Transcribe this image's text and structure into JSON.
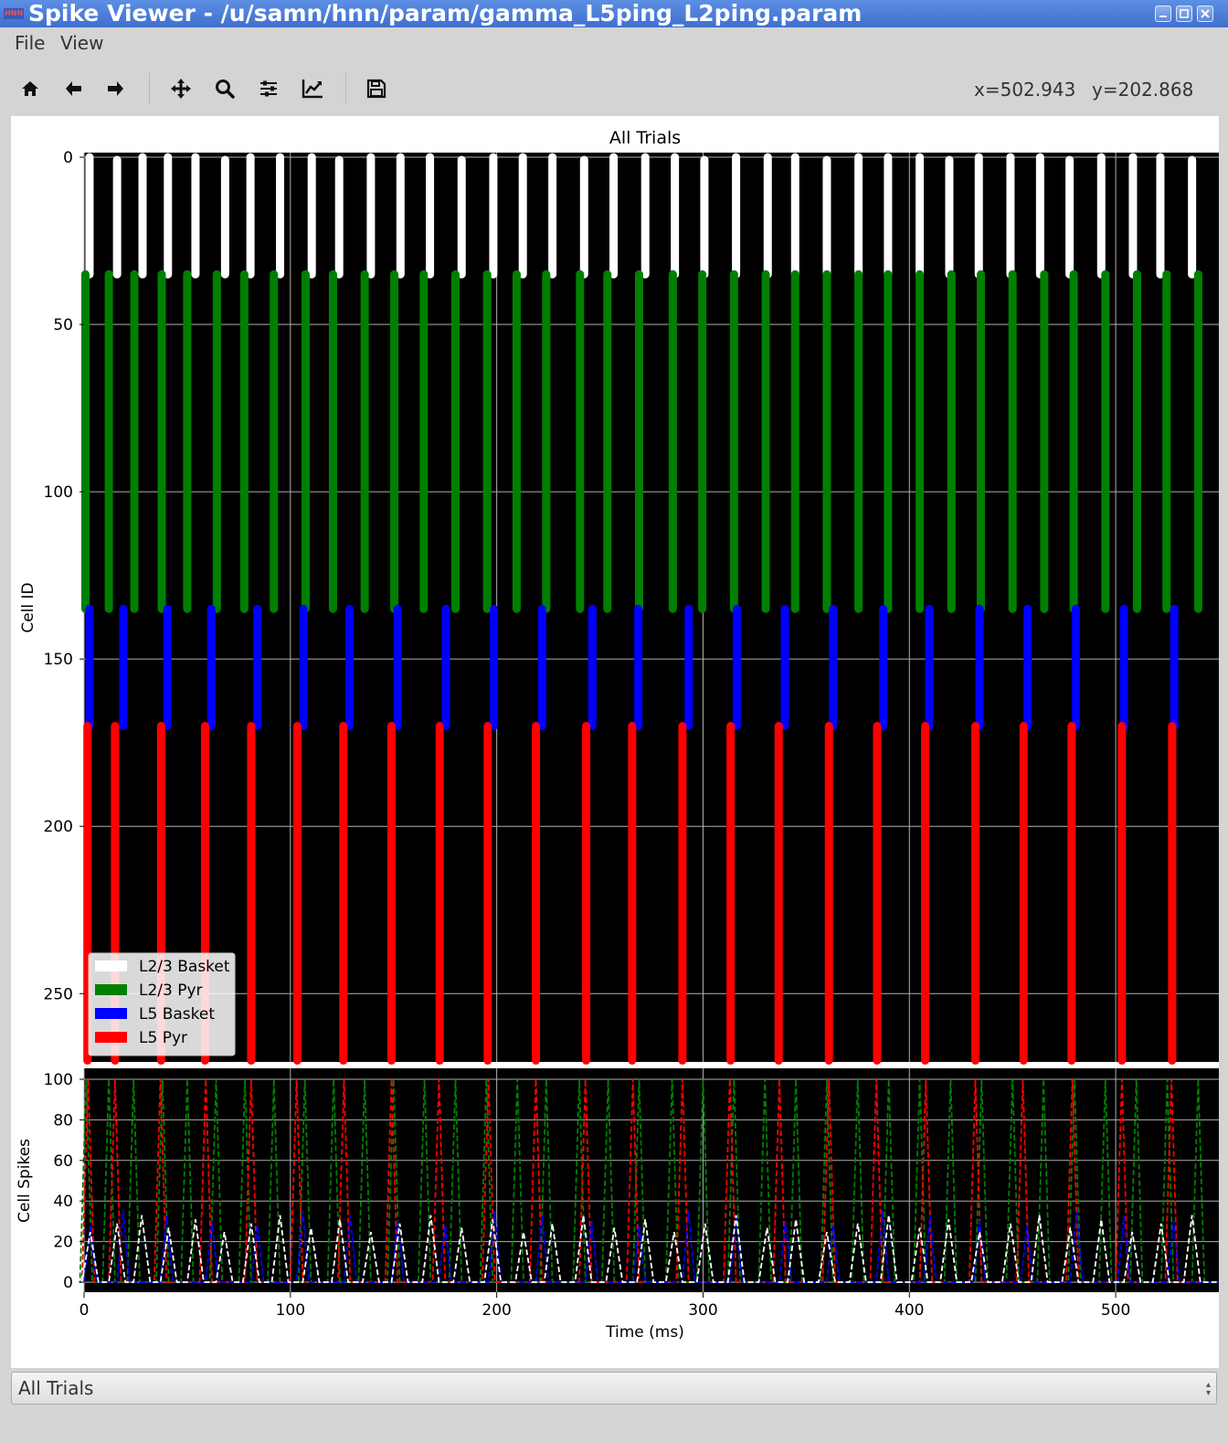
{
  "window": {
    "app_icon_text": "HNN",
    "title": "Spike Viewer - /u/samn/hnn/param/gamma_L5ping_L2ping.param"
  },
  "menu": {
    "items": [
      "File",
      "View"
    ]
  },
  "toolbar": {
    "tools": [
      "home-icon",
      "back-arrow-icon",
      "forward-arrow-icon",
      "pan-icon",
      "zoom-icon",
      "subplots-config-icon",
      "axes-edit-icon",
      "save-icon"
    ],
    "x_readout": "x=502.943",
    "y_readout": "y=202.868"
  },
  "trial_selector": {
    "value": "All Trials"
  },
  "colors": {
    "l23_basket": "#ffffff",
    "l23_pyr": "#008000",
    "l5_basket": "#0000ff",
    "l5_pyr": "#ff0000",
    "plot_bg": "#000000",
    "grid": "#b0b0b0"
  },
  "chart_data": [
    {
      "type": "scatter",
      "title": "All Trials",
      "ylabel": "Cell ID",
      "ylim": [
        270,
        0
      ],
      "xlim": [
        0,
        550
      ],
      "yticks": [
        0,
        50,
        100,
        150,
        200,
        250
      ],
      "grid": true,
      "legend_position": "lower-left",
      "series": [
        {
          "name": "L2/3 Basket",
          "color": "#ffffff",
          "cell_range": [
            0,
            35
          ],
          "spike_times": [
            3,
            16,
            28,
            41,
            54,
            68,
            81,
            95,
            110,
            124,
            139,
            153,
            168,
            183,
            198,
            213,
            227,
            242,
            257,
            272,
            286,
            301,
            316,
            331,
            345,
            360,
            375,
            390,
            405,
            419,
            434,
            449,
            463,
            478,
            493,
            508,
            522,
            537
          ]
        },
        {
          "name": "L2/3 Pyr",
          "color": "#008000",
          "cell_range": [
            35,
            135
          ],
          "spike_times": [
            1,
            12,
            24,
            38,
            50,
            64,
            78,
            92,
            107,
            121,
            136,
            150,
            165,
            180,
            195,
            210,
            224,
            240,
            254,
            269,
            285,
            300,
            315,
            330,
            345,
            360,
            375,
            390,
            405,
            420,
            435,
            450,
            465,
            480,
            495,
            510,
            525,
            540
          ]
        },
        {
          "name": "L5 Basket",
          "color": "#0000ff",
          "cell_range": [
            135,
            170
          ],
          "spike_times": [
            3,
            19,
            40,
            62,
            84,
            106,
            129,
            152,
            175,
            199,
            222,
            246,
            269,
            293,
            316,
            340,
            363,
            387,
            410,
            434,
            457,
            481,
            504,
            528
          ]
        },
        {
          "name": "L5 Pyr",
          "color": "#ff0000",
          "cell_range": [
            170,
            270
          ],
          "spike_times": [
            2,
            15,
            37,
            59,
            81,
            103,
            126,
            149,
            172,
            196,
            219,
            243,
            266,
            290,
            313,
            337,
            361,
            384,
            408,
            432,
            455,
            479,
            503,
            527
          ]
        }
      ]
    },
    {
      "type": "line",
      "xlabel": "Time (ms)",
      "ylabel": "Cell Spikes",
      "xlim": [
        0,
        550
      ],
      "ylim": [
        -5,
        105
      ],
      "xticks": [
        0,
        100,
        200,
        300,
        400,
        500
      ],
      "yticks": [
        0,
        20,
        40,
        60,
        80,
        100
      ],
      "grid": true,
      "series": [
        {
          "name": "L2/3 Basket",
          "color": "#ffffff",
          "peak": 33
        },
        {
          "name": "L2/3 Pyr",
          "color": "#008000",
          "peak": 100
        },
        {
          "name": "L5 Basket",
          "color": "#0000ff",
          "peak": 35
        },
        {
          "name": "L5 Pyr",
          "color": "#ff0000",
          "peak": 100
        }
      ]
    }
  ]
}
